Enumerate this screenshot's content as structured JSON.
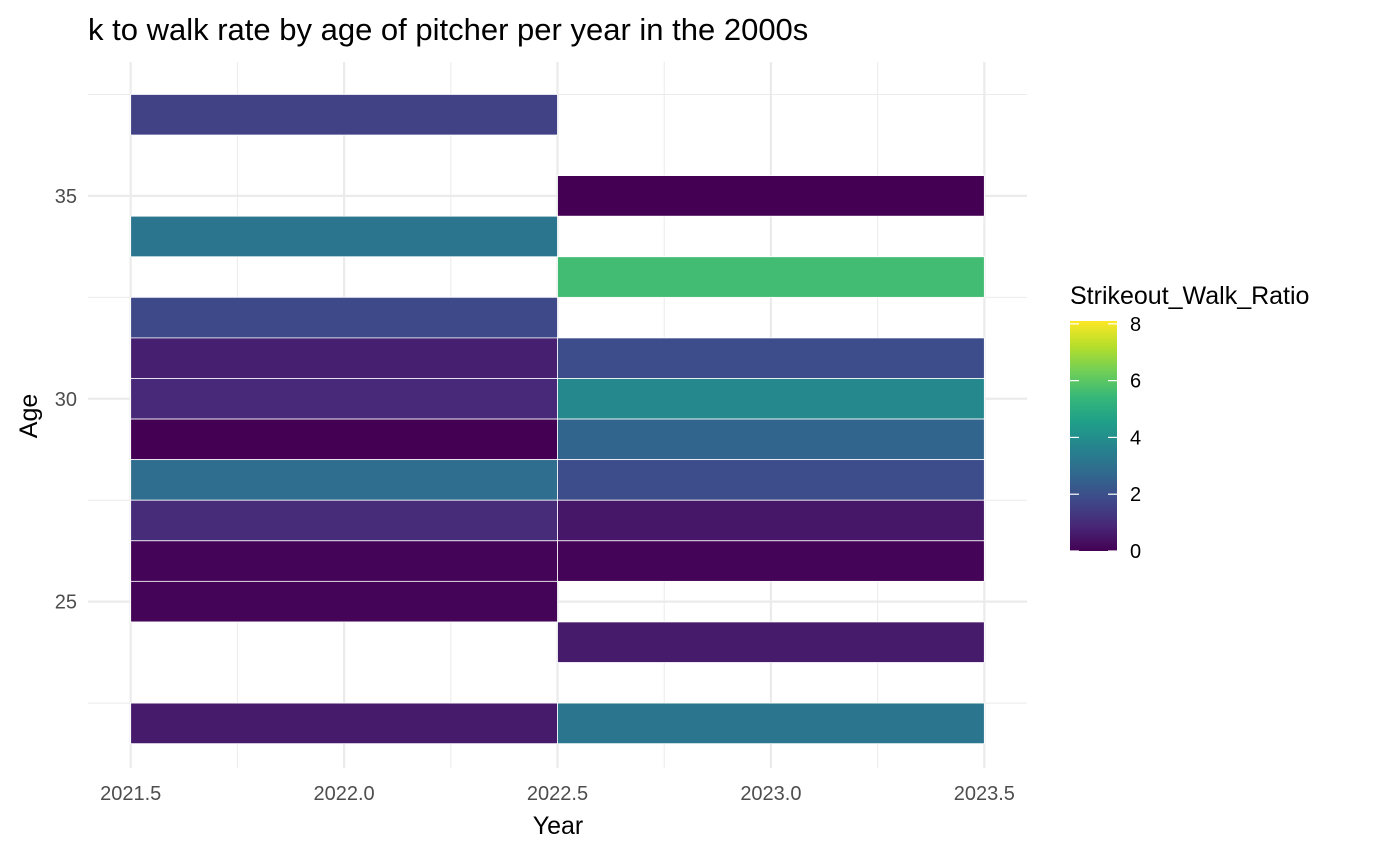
{
  "chart_data": {
    "type": "heatmap",
    "title": "k to walk rate by age of pitcher per year in the 2000s",
    "xlabel": "Year",
    "ylabel": "Age",
    "x_ticks": [
      "2021.5",
      "2022.0",
      "2022.5",
      "2023.0",
      "2023.5"
    ],
    "y_ticks": [
      "25",
      "30",
      "35"
    ],
    "xlim": [
      2021.4,
      2023.6
    ],
    "ylim": [
      20.9,
      38.3
    ],
    "grid": true,
    "legend": {
      "title": "Strikeout_Walk_Ratio",
      "position": "right",
      "ticks": [
        "0",
        "2",
        "4",
        "6",
        "8"
      ],
      "range": [
        0,
        8.1
      ],
      "colormap": "viridis"
    },
    "cells": [
      {
        "year": 2022,
        "age": 37,
        "value": 1.6
      },
      {
        "year": 2022,
        "age": 34,
        "value": 3.2
      },
      {
        "year": 2022,
        "age": 32,
        "value": 1.8
      },
      {
        "year": 2022,
        "age": 31,
        "value": 0.7
      },
      {
        "year": 2022,
        "age": 30,
        "value": 0.9
      },
      {
        "year": 2022,
        "age": 29,
        "value": 0.0
      },
      {
        "year": 2022,
        "age": 28,
        "value": 2.9
      },
      {
        "year": 2022,
        "age": 27,
        "value": 1.0
      },
      {
        "year": 2022,
        "age": 26,
        "value": 0.1
      },
      {
        "year": 2022,
        "age": 25,
        "value": 0.1
      },
      {
        "year": 2022,
        "age": 22,
        "value": 0.6
      },
      {
        "year": 2023,
        "age": 35,
        "value": 0.0
      },
      {
        "year": 2023,
        "age": 33,
        "value": 5.6
      },
      {
        "year": 2023,
        "age": 31,
        "value": 1.9
      },
      {
        "year": 2023,
        "age": 30,
        "value": 3.8
      },
      {
        "year": 2023,
        "age": 29,
        "value": 2.6
      },
      {
        "year": 2023,
        "age": 28,
        "value": 1.9
      },
      {
        "year": 2023,
        "age": 27,
        "value": 0.5
      },
      {
        "year": 2023,
        "age": 26,
        "value": 0.1
      },
      {
        "year": 2023,
        "age": 24,
        "value": 0.6
      },
      {
        "year": 2023,
        "age": 22,
        "value": 3.2
      }
    ]
  }
}
